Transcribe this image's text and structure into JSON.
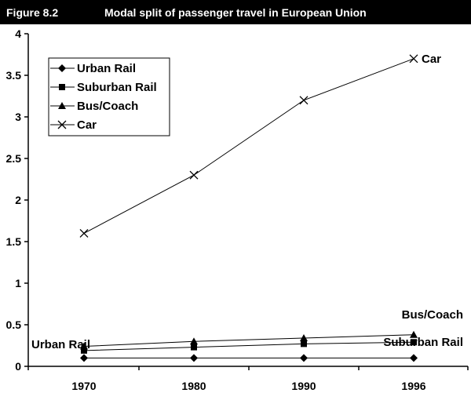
{
  "figure": {
    "label": "Figure 8.2",
    "title": "Modal split of passenger travel in European Union"
  },
  "chart_data": {
    "type": "line",
    "title": "Modal split of passenger travel in European Union",
    "xlabel": "",
    "ylabel": "",
    "categories": [
      "1970",
      "1980",
      "1990",
      "1996"
    ],
    "ylim": [
      0,
      4
    ],
    "yticks": [
      "0",
      "0.5",
      "1",
      "1.5",
      "2",
      "2.5",
      "3",
      "3.5",
      "4"
    ],
    "grid": false,
    "legend_position": "top-left",
    "series": [
      {
        "name": "Urban Rail",
        "marker": "diamond",
        "values": [
          0.1,
          0.1,
          0.1,
          0.1
        ]
      },
      {
        "name": "Suburban Rail",
        "marker": "square",
        "values": [
          0.19,
          0.23,
          0.27,
          0.29
        ]
      },
      {
        "name": "Bus/Coach",
        "marker": "triangle",
        "values": [
          0.24,
          0.3,
          0.34,
          0.38
        ]
      },
      {
        "name": "Car",
        "marker": "x",
        "values": [
          1.6,
          2.3,
          3.2,
          3.7
        ]
      }
    ],
    "annotations": [
      {
        "text": "Car",
        "series": "Car",
        "end": "right"
      },
      {
        "text": "Bus/Coach",
        "series": "Bus/Coach",
        "end": "right"
      },
      {
        "text": "Suburban Rail",
        "series": "Suburban Rail",
        "end": "right"
      },
      {
        "text": "Urban Rail",
        "series": "Urban Rail",
        "end": "left"
      }
    ]
  }
}
